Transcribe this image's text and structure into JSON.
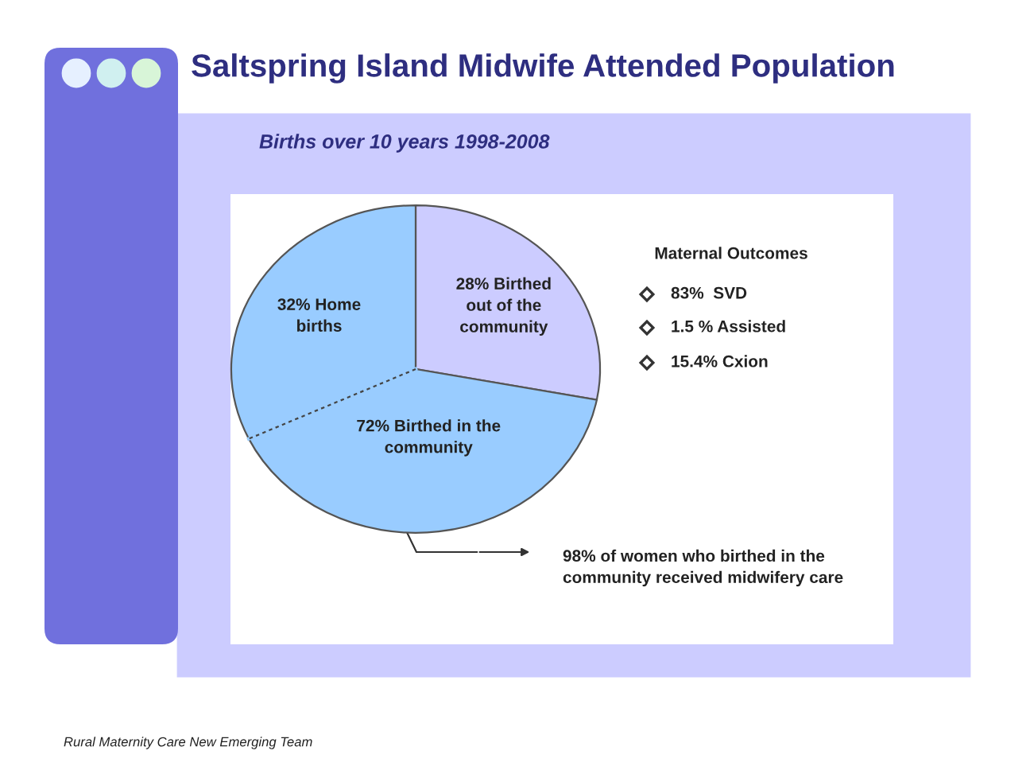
{
  "chart_data": {
    "type": "pie",
    "title": "Saltspring Island Midwife Attended Population",
    "subtitle": "Births over 10 years 1998-2008",
    "categories": [
      "28% Birthed\nout of the\ncommunity",
      null,
      "32% Home\nbirths"
    ],
    "values": [
      28,
      40,
      32
    ],
    "colors": [
      "#ccccff",
      "#99ccff",
      "#99ccff"
    ],
    "annotations": [
      "72% Birthed in the\ncommunity",
      "Maternal Outcomes",
      "83%  SVD",
      "1.5 % Assisted",
      "15.4% Cxion",
      "98% of women who birthed in the\ncommunity received midwifery care",
      "Rural Maternity Care New Emerging Team"
    ],
    "legend": false
  }
}
